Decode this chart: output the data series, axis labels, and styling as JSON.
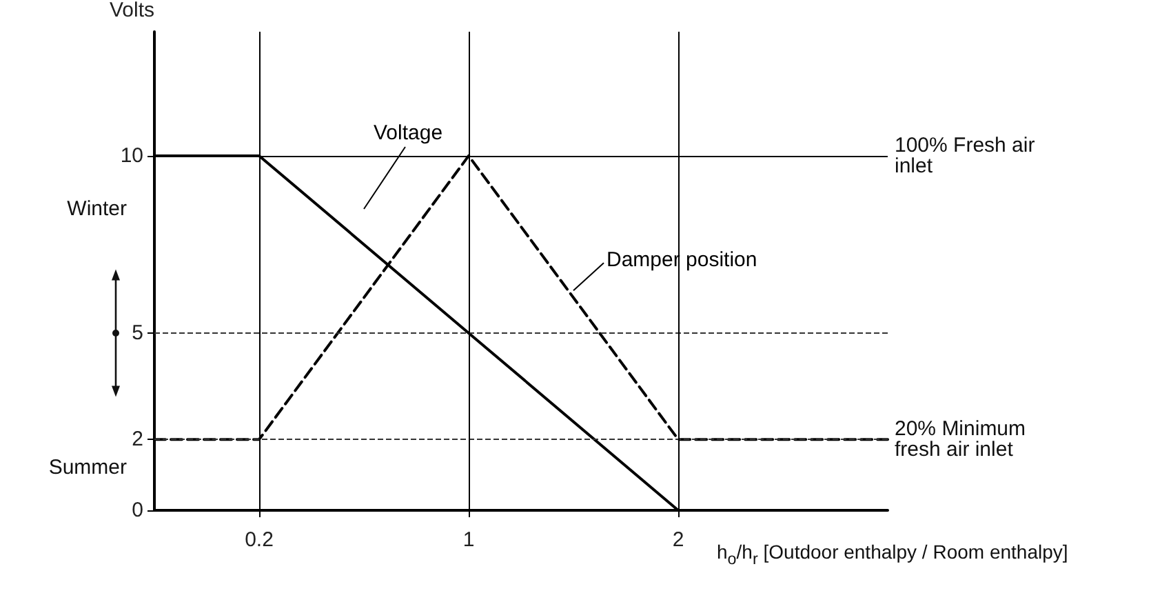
{
  "chart_data": {
    "type": "line",
    "ylabel": "Volts",
    "xlabel": "h$_{o}$/h$_{r}$ [Outdoor enthalpy / Room enthalpy]",
    "categories": [
      null,
      "0.2",
      null,
      "1",
      null,
      "2",
      null,
      null
    ],
    "series": [
      {
        "name": "Voltage",
        "color": "#000000",
        "line_style": "solid",
        "values": [
          10,
          10,
          null,
          5,
          null,
          0,
          null,
          null
        ]
      },
      {
        "name": "Damper position",
        "color": "#000000",
        "line_style": "dashed",
        "values": [
          2,
          2,
          null,
          10,
          null,
          2,
          null,
          2
        ]
      }
    ],
    "ylim": [
      0,
      13.5
    ],
    "yticks": [
      0,
      2,
      5,
      10
    ],
    "grid": false,
    "legend": false,
    "marker": "none",
    "ref_lines": [
      {
        "axis": "y",
        "value": 10,
        "label": "100% Fresh air inlet",
        "color": "#000000",
        "line_style": "solid"
      },
      {
        "axis": "y",
        "value": 5,
        "label": null,
        "color": "#333333",
        "line_style": "dashed"
      },
      {
        "axis": "y",
        "value": 2,
        "label": "20% Minimum fresh air inlet",
        "color": "#333333",
        "line_style": "dashed"
      },
      {
        "axis": "x",
        "value": "0.2",
        "label": null,
        "color": "#000000",
        "line_style": "solid"
      },
      {
        "axis": "x",
        "value": "1",
        "label": null,
        "color": "#000000",
        "line_style": "solid"
      },
      {
        "axis": "x",
        "value": "2",
        "label": null,
        "color": "#000000",
        "line_style": "solid"
      }
    ],
    "annotations": [
      "Winter",
      "Summer"
    ]
  }
}
